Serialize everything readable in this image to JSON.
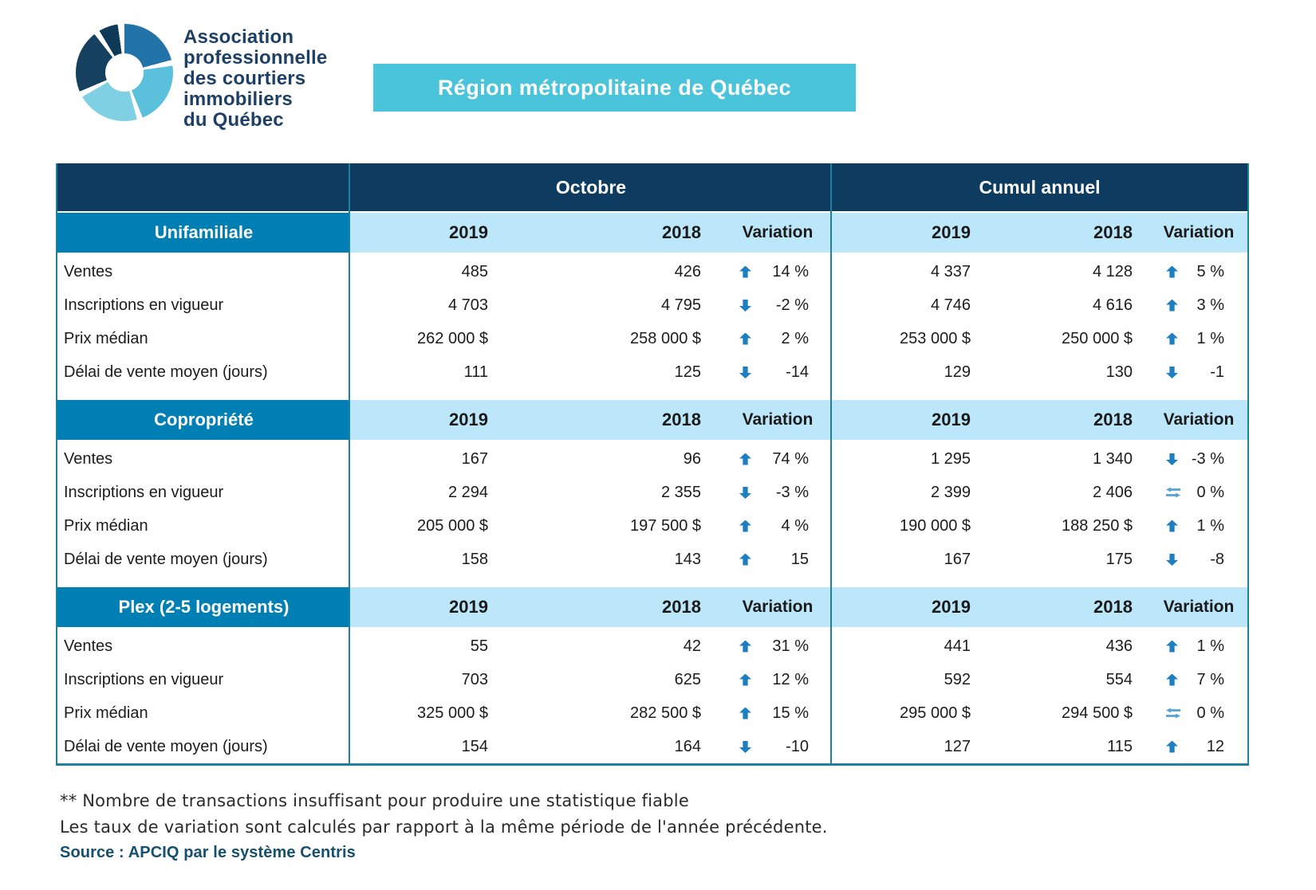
{
  "logo": {
    "lines": [
      "Association",
      "professionnelle",
      "des courtiers",
      "immobiliers",
      "du Québec"
    ]
  },
  "banner": {
    "title": "Région métropolitaine de Québec"
  },
  "table": {
    "groups": {
      "octobre": "Octobre",
      "cumul": "Cumul annuel"
    },
    "columns": {
      "y2019": "2019",
      "y2018": "2018",
      "variation": "Variation"
    },
    "sections": [
      {
        "name": "Unifamiliale",
        "rows": [
          {
            "label": "Ventes",
            "o2019": "485",
            "o2018": "426",
            "ovar": "14 %",
            "odir": "up",
            "c2019": "4 337",
            "c2018": "4 128",
            "cvar": "5 %",
            "cdir": "up"
          },
          {
            "label": "Inscriptions en vigueur",
            "o2019": "4 703",
            "o2018": "4 795",
            "ovar": "-2 %",
            "odir": "down",
            "c2019": "4 746",
            "c2018": "4 616",
            "cvar": "3 %",
            "cdir": "up"
          },
          {
            "label": "Prix médian",
            "o2019": "262 000 $",
            "o2018": "258 000 $",
            "ovar": "2 %",
            "odir": "up",
            "c2019": "253 000 $",
            "c2018": "250 000 $",
            "cvar": "1 %",
            "cdir": "up"
          },
          {
            "label": "Délai de vente moyen (jours)",
            "o2019": "111",
            "o2018": "125",
            "ovar": "-14",
            "odir": "down",
            "c2019": "129",
            "c2018": "130",
            "cvar": "-1",
            "cdir": "down"
          }
        ]
      },
      {
        "name": "Copropriété",
        "rows": [
          {
            "label": "Ventes",
            "o2019": "167",
            "o2018": "96",
            "ovar": "74 %",
            "odir": "up",
            "c2019": "1 295",
            "c2018": "1 340",
            "cvar": "-3 %",
            "cdir": "down"
          },
          {
            "label": "Inscriptions en vigueur",
            "o2019": "2 294",
            "o2018": "2 355",
            "ovar": "-3 %",
            "odir": "down",
            "c2019": "2 399",
            "c2018": "2 406",
            "cvar": "0 %",
            "cdir": "stable"
          },
          {
            "label": "Prix médian",
            "o2019": "205 000 $",
            "o2018": "197 500 $",
            "ovar": "4 %",
            "odir": "up",
            "c2019": "190 000 $",
            "c2018": "188 250 $",
            "cvar": "1 %",
            "cdir": "up"
          },
          {
            "label": "Délai de vente moyen (jours)",
            "o2019": "158",
            "o2018": "143",
            "ovar": "15",
            "odir": "up",
            "c2019": "167",
            "c2018": "175",
            "cvar": "-8",
            "cdir": "down"
          }
        ]
      },
      {
        "name": "Plex (2-5 logements)",
        "rows": [
          {
            "label": "Ventes",
            "o2019": "55",
            "o2018": "42",
            "ovar": "31 %",
            "odir": "up",
            "c2019": "441",
            "c2018": "436",
            "cvar": "1 %",
            "cdir": "up"
          },
          {
            "label": "Inscriptions en vigueur",
            "o2019": "703",
            "o2018": "625",
            "ovar": "12 %",
            "odir": "up",
            "c2019": "592",
            "c2018": "554",
            "cvar": "7 %",
            "cdir": "up"
          },
          {
            "label": "Prix médian",
            "o2019": "325 000 $",
            "o2018": "282 500 $",
            "ovar": "15 %",
            "odir": "up",
            "c2019": "295 000 $",
            "c2018": "294 500 $",
            "cvar": "0 %",
            "cdir": "stable"
          },
          {
            "label": "Délai de vente moyen (jours)",
            "o2019": "154",
            "o2018": "164",
            "ovar": "-10",
            "odir": "down",
            "c2019": "127",
            "c2018": "115",
            "cvar": "12",
            "cdir": "up"
          }
        ]
      }
    ]
  },
  "footnotes": {
    "note1": "** Nombre de transactions insuffisant pour produire une statistique fiable",
    "note2": "Les taux de variation sont calculés par rapport à la même période de l'année précédente.",
    "source": "Source : APCIQ par le système Centris"
  },
  "colors": {
    "navy_header": "#0e3c61",
    "section_blue": "#007fb5",
    "light_blue": "#bce7fa",
    "banner_cyan": "#49c4da",
    "arrow_blue": "#1d7fc1",
    "stable_blue": "#54a3d6",
    "divider_teal": "#1f7f9f",
    "navy_text": "#1e3f66"
  }
}
